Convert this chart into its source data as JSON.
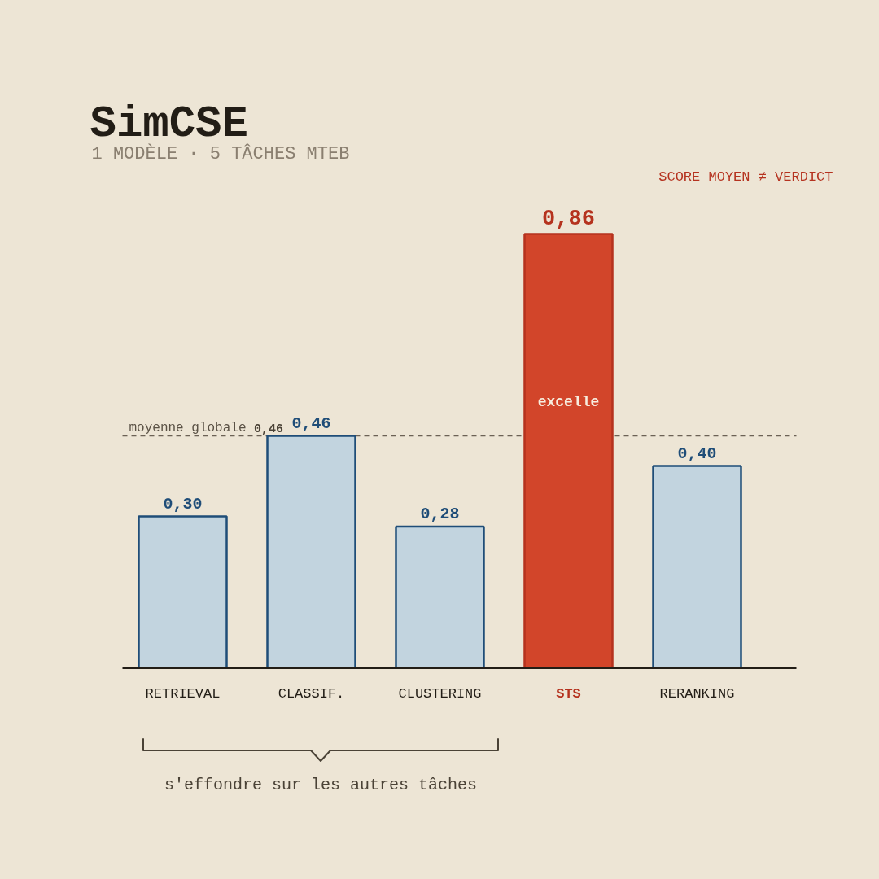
{
  "chart_data": {
    "type": "bar",
    "title": "SimCSE",
    "subtitle": "1 MODÈLE · 5 TÂCHES MTEB",
    "categories": [
      "RETRIEVAL",
      "CLASSIF.",
      "CLUSTERING",
      "STS",
      "RERANKING"
    ],
    "values": [
      0.3,
      0.46,
      0.28,
      0.86,
      0.4
    ],
    "colors": [
      "#c2d4df",
      "#c2d4df",
      "#c2d4df",
      "#d2452a",
      "#c2d4df"
    ],
    "value_labels": [
      "0,30",
      "0,46",
      "0,28",
      "0,86",
      "0,40"
    ],
    "ref_lines": [
      {
        "axis": "y",
        "value": 0.46,
        "label": "moyenne globale 0,46",
        "color": "#6b6155",
        "line_style": "dashed"
      }
    ],
    "annotations": [
      "SCORE MOYEN ≠ VERDICT",
      "excelle",
      "s'effondre sur les autres tâches"
    ]
  }
}
